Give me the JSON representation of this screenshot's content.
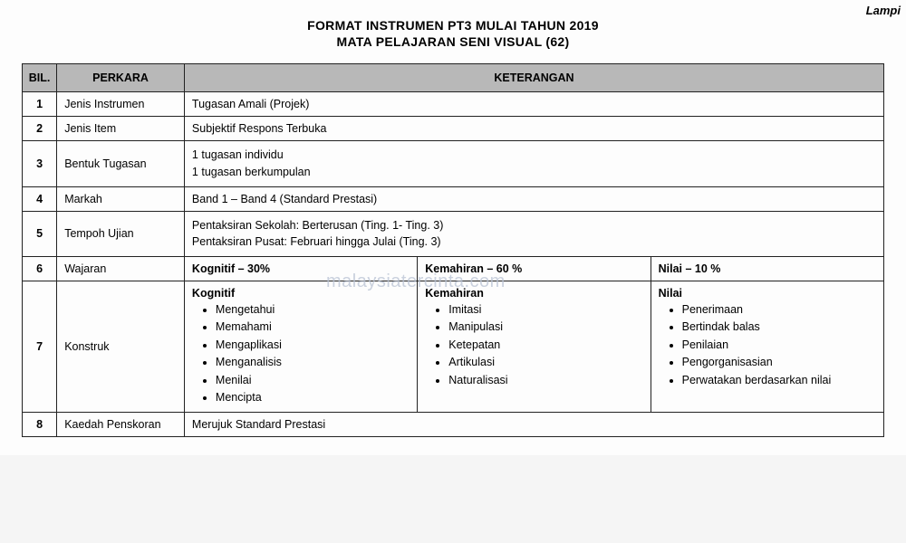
{
  "corner": "Lampi",
  "title": "FORMAT INSTRUMEN PT3 MULAI TAHUN 2019",
  "subtitle": "MATA PELAJARAN SENI VISUAL (62)",
  "watermark": "malaysiatercinta.com",
  "headers": {
    "bil": "BIL.",
    "perkara": "PERKARA",
    "keterangan": "KETERANGAN"
  },
  "rows": {
    "r1": {
      "bil": "1",
      "perkara": "Jenis Instrumen",
      "ket": "Tugasan Amali (Projek)"
    },
    "r2": {
      "bil": "2",
      "perkara": "Jenis Item",
      "ket": "Subjektif Respons Terbuka"
    },
    "r3": {
      "bil": "3",
      "perkara": "Bentuk Tugasan",
      "ket_a": "1 tugasan individu",
      "ket_b": "1 tugasan berkumpulan"
    },
    "r4": {
      "bil": "4",
      "perkara": "Markah",
      "ket": "Band 1 – Band 4 (Standard Prestasi)"
    },
    "r5": {
      "bil": "5",
      "perkara": "Tempoh Ujian",
      "ket_a": "Pentaksiran Sekolah: Berterusan (Ting. 1- Ting. 3)",
      "ket_b": "Pentaksiran Pusat: Februari hingga Julai  (Ting. 3)"
    },
    "r6": {
      "bil": "6",
      "perkara": "Wajaran",
      "c1": "Kognitif – 30%",
      "c2": "Kemahiran – 60 %",
      "c3": "Nilai – 10 %"
    },
    "r7": {
      "bil": "7",
      "perkara": "Konstruk",
      "c1h": "Kognitif",
      "c1": [
        "Mengetahui",
        "Memahami",
        "Mengaplikasi",
        "Menganalisis",
        "Menilai",
        "Mencipta"
      ],
      "c2h": "Kemahiran",
      "c2": [
        "Imitasi",
        "Manipulasi",
        "Ketepatan",
        "Artikulasi",
        "Naturalisasi"
      ],
      "c3h": "Nilai",
      "c3": [
        "Penerimaan",
        "Bertindak balas",
        "Penilaian",
        "Pengorganisasian",
        "Perwatakan berdasarkan nilai"
      ]
    },
    "r8": {
      "bil": "8",
      "perkara": "Kaedah Penskoran",
      "ket": "Merujuk Standard Prestasi"
    }
  }
}
